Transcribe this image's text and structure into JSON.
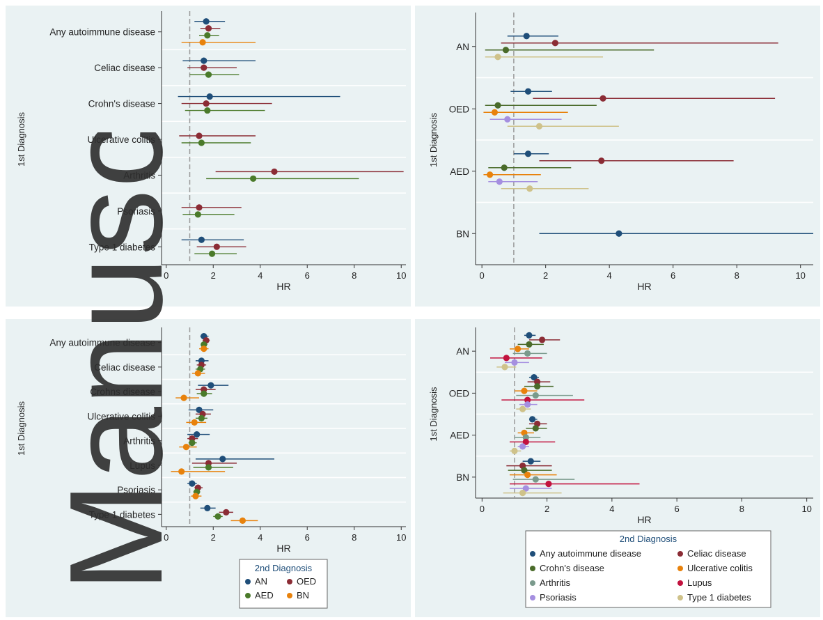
{
  "colors": {
    "AN": "#1f4e79",
    "OED": "#8b2c35",
    "AED": "#4a7a2a",
    "BN": "#e8820c",
    "Any autoimmune disease": "#1f4e79",
    "Celiac disease": "#8b2c35",
    "Crohn's disease": "#4a6b2a",
    "Ulcerative colitis": "#e8820c",
    "Arthritis": "#7a9a8c",
    "Lupus": "#c2123e",
    "Psoriasis": "#a58fe0",
    "Type 1 diabetes": "#cfc28a",
    "panel_bg": "#eaf2f3",
    "ref_line": "#999999"
  },
  "watermark": "Manuscript",
  "legend_bottom_left": {
    "title": "2nd Diagnosis",
    "items": [
      "AN",
      "OED",
      "AED",
      "BN"
    ]
  },
  "legend_bottom_right": {
    "title": "2nd Diagnosis",
    "items": [
      "Any autoimmune disease",
      "Celiac disease",
      "Crohn's disease",
      "Ulcerative colitis",
      "Arthritis",
      "Lupus",
      "Psoriasis",
      "Type 1 diabetes"
    ]
  },
  "chart_data": [
    {
      "type": "scatter",
      "panel": "top-left",
      "xlabel": "HR",
      "ylabel": "1st Diagnosis",
      "xlim": [
        -0.2,
        10.2
      ],
      "xticks": [
        0,
        2,
        4,
        6,
        8,
        10
      ],
      "reference_line": 1,
      "groups": [
        {
          "label": "Any autoimmune disease",
          "points": [
            {
              "series": "AN",
              "hr": 1.7,
              "lo": 1.2,
              "hi": 2.5
            },
            {
              "series": "OED",
              "hr": 1.8,
              "lo": 1.45,
              "hi": 2.3
            },
            {
              "series": "AED",
              "hr": 1.75,
              "lo": 1.4,
              "hi": 2.25
            },
            {
              "series": "BN",
              "hr": 1.55,
              "lo": 0.65,
              "hi": 3.8
            }
          ]
        },
        {
          "label": "Celiac disease",
          "points": [
            {
              "series": "AN",
              "hr": 1.6,
              "lo": 0.7,
              "hi": 3.8
            },
            {
              "series": "OED",
              "hr": 1.6,
              "lo": 0.9,
              "hi": 3.0
            },
            {
              "series": "AED",
              "hr": 1.8,
              "lo": 1.0,
              "hi": 3.1
            }
          ]
        },
        {
          "label": "Crohn's disease",
          "points": [
            {
              "series": "AN",
              "hr": 1.85,
              "lo": 0.5,
              "hi": 7.4
            },
            {
              "series": "OED",
              "hr": 1.7,
              "lo": 0.65,
              "hi": 4.5
            },
            {
              "series": "AED",
              "hr": 1.75,
              "lo": 0.8,
              "hi": 4.2
            }
          ]
        },
        {
          "label": "Ulcerative colitis",
          "points": [
            {
              "series": "OED",
              "hr": 1.4,
              "lo": 0.55,
              "hi": 3.8
            },
            {
              "series": "AED",
              "hr": 1.5,
              "lo": 0.65,
              "hi": 3.6
            }
          ]
        },
        {
          "label": "Arthritis",
          "points": [
            {
              "series": "OED",
              "hr": 4.6,
              "lo": 2.1,
              "hi": 10.1
            },
            {
              "series": "AED",
              "hr": 3.7,
              "lo": 1.7,
              "hi": 8.2
            }
          ]
        },
        {
          "label": "Psoriasis",
          "points": [
            {
              "series": "OED",
              "hr": 1.4,
              "lo": 0.65,
              "hi": 3.2
            },
            {
              "series": "AED",
              "hr": 1.35,
              "lo": 0.7,
              "hi": 2.9
            }
          ]
        },
        {
          "label": "Type 1 diabetes",
          "points": [
            {
              "series": "AN",
              "hr": 1.5,
              "lo": 0.65,
              "hi": 3.3
            },
            {
              "series": "OED",
              "hr": 2.15,
              "lo": 1.3,
              "hi": 3.4
            },
            {
              "series": "AED",
              "hr": 1.95,
              "lo": 1.2,
              "hi": 3.0
            }
          ]
        }
      ]
    },
    {
      "type": "scatter",
      "panel": "top-right",
      "xlabel": "HR",
      "ylabel": "1st Diagnosis",
      "xlim": [
        -0.2,
        10.4
      ],
      "xticks": [
        0,
        2,
        4,
        6,
        8,
        10
      ],
      "reference_line": 1,
      "groups": [
        {
          "label": "AN",
          "points": [
            {
              "series": "Any autoimmune disease",
              "hr": 1.4,
              "lo": 0.8,
              "hi": 2.4
            },
            {
              "series": "Celiac disease",
              "hr": 2.3,
              "lo": 0.6,
              "hi": 9.3
            },
            {
              "series": "Crohn's disease",
              "hr": 0.75,
              "lo": 0.1,
              "hi": 5.4
            },
            {
              "series": "Type 1 diabetes",
              "hr": 0.5,
              "lo": 0.1,
              "hi": 3.8
            }
          ]
        },
        {
          "label": "OED",
          "points": [
            {
              "series": "Any autoimmune disease",
              "hr": 1.45,
              "lo": 0.9,
              "hi": 2.2
            },
            {
              "series": "Celiac disease",
              "hr": 3.8,
              "lo": 1.6,
              "hi": 9.2
            },
            {
              "series": "Crohn's disease",
              "hr": 0.5,
              "lo": 0.1,
              "hi": 3.6
            },
            {
              "series": "Ulcerative colitis",
              "hr": 0.4,
              "lo": 0.05,
              "hi": 2.7
            },
            {
              "series": "Psoriasis",
              "hr": 0.8,
              "lo": 0.25,
              "hi": 2.5
            },
            {
              "series": "Type 1 diabetes",
              "hr": 1.8,
              "lo": 0.8,
              "hi": 4.3
            }
          ]
        },
        {
          "label": "AED",
          "points": [
            {
              "series": "Any autoimmune disease",
              "hr": 1.45,
              "lo": 1.0,
              "hi": 2.1
            },
            {
              "series": "Celiac disease",
              "hr": 3.75,
              "lo": 1.8,
              "hi": 7.9
            },
            {
              "series": "Crohn's disease",
              "hr": 0.7,
              "lo": 0.2,
              "hi": 2.8
            },
            {
              "series": "Ulcerative colitis",
              "hr": 0.25,
              "lo": 0.05,
              "hi": 1.85
            },
            {
              "series": "Psoriasis",
              "hr": 0.55,
              "lo": 0.2,
              "hi": 1.75
            },
            {
              "series": "Type 1 diabetes",
              "hr": 1.5,
              "lo": 0.6,
              "hi": 3.35
            }
          ]
        },
        {
          "label": "BN",
          "points": [
            {
              "series": "Any autoimmune disease",
              "hr": 4.3,
              "lo": 1.8,
              "hi": 10.4
            }
          ]
        }
      ]
    },
    {
      "type": "scatter",
      "panel": "bottom-left",
      "xlabel": "HR",
      "ylabel": "1st Diagnosis",
      "xlim": [
        -0.2,
        10.2
      ],
      "xticks": [
        0,
        2,
        4,
        6,
        8,
        10
      ],
      "reference_line": 1,
      "groups": [
        {
          "label": "Any autoimmune disease",
          "points": [
            {
              "series": "AN",
              "hr": 1.6,
              "lo": 1.45,
              "hi": 1.8
            },
            {
              "series": "OED",
              "hr": 1.7,
              "lo": 1.55,
              "hi": 1.85
            },
            {
              "series": "AED",
              "hr": 1.6,
              "lo": 1.5,
              "hi": 1.75
            },
            {
              "series": "BN",
              "hr": 1.6,
              "lo": 1.4,
              "hi": 1.8
            }
          ]
        },
        {
          "label": "Celiac disease",
          "points": [
            {
              "series": "AN",
              "hr": 1.5,
              "lo": 1.25,
              "hi": 1.8
            },
            {
              "series": "OED",
              "hr": 1.5,
              "lo": 1.3,
              "hi": 1.7
            },
            {
              "series": "AED",
              "hr": 1.45,
              "lo": 1.25,
              "hi": 1.65
            },
            {
              "series": "BN",
              "hr": 1.35,
              "lo": 1.1,
              "hi": 1.65
            }
          ]
        },
        {
          "label": "Crohns disease",
          "points": [
            {
              "series": "AN",
              "hr": 1.9,
              "lo": 1.35,
              "hi": 2.65
            },
            {
              "series": "OED",
              "hr": 1.6,
              "lo": 1.25,
              "hi": 2.1
            },
            {
              "series": "AED",
              "hr": 1.6,
              "lo": 1.3,
              "hi": 1.95
            },
            {
              "series": "BN",
              "hr": 0.75,
              "lo": 0.4,
              "hi": 1.4
            }
          ]
        },
        {
          "label": "Ulcerative colitis",
          "points": [
            {
              "series": "AN",
              "hr": 1.4,
              "lo": 0.95,
              "hi": 2.0
            },
            {
              "series": "OED",
              "hr": 1.55,
              "lo": 1.25,
              "hi": 1.9
            },
            {
              "series": "AED",
              "hr": 1.5,
              "lo": 1.25,
              "hi": 1.75
            },
            {
              "series": "BN",
              "hr": 1.2,
              "lo": 0.85,
              "hi": 1.7
            }
          ]
        },
        {
          "label": "Arthritis",
          "points": [
            {
              "series": "AN",
              "hr": 1.3,
              "lo": 0.9,
              "hi": 1.85
            },
            {
              "series": "OED",
              "hr": 1.1,
              "lo": 0.9,
              "hi": 1.35
            },
            {
              "series": "AED",
              "hr": 1.1,
              "lo": 0.95,
              "hi": 1.3
            },
            {
              "series": "BN",
              "hr": 0.85,
              "lo": 0.55,
              "hi": 1.3
            }
          ]
        },
        {
          "label": "Lupus",
          "points": [
            {
              "series": "AN",
              "hr": 2.4,
              "lo": 1.25,
              "hi": 4.6
            },
            {
              "series": "OED",
              "hr": 1.8,
              "lo": 1.1,
              "hi": 3.0
            },
            {
              "series": "AED",
              "hr": 1.8,
              "lo": 1.15,
              "hi": 2.85
            },
            {
              "series": "BN",
              "hr": 0.65,
              "lo": 0.2,
              "hi": 2.5
            }
          ]
        },
        {
          "label": "Psoriasis",
          "points": [
            {
              "series": "AN",
              "hr": 1.1,
              "lo": 0.9,
              "hi": 1.3
            },
            {
              "series": "OED",
              "hr": 1.35,
              "lo": 1.2,
              "hi": 1.55
            },
            {
              "series": "AED",
              "hr": 1.3,
              "lo": 1.15,
              "hi": 1.45
            },
            {
              "series": "BN",
              "hr": 1.25,
              "lo": 1.05,
              "hi": 1.5
            }
          ]
        },
        {
          "label": "Type 1 diabetes",
          "points": [
            {
              "series": "AN",
              "hr": 1.75,
              "lo": 1.45,
              "hi": 2.1
            },
            {
              "series": "OED",
              "hr": 2.55,
              "lo": 2.25,
              "hi": 2.85
            },
            {
              "series": "AED",
              "hr": 2.2,
              "lo": 2.0,
              "hi": 2.4
            },
            {
              "series": "BN",
              "hr": 3.25,
              "lo": 2.75,
              "hi": 3.9
            }
          ]
        }
      ]
    },
    {
      "type": "scatter",
      "panel": "bottom-right",
      "xlabel": "HR",
      "ylabel": "1st Diagnosis",
      "xlim": [
        -0.2,
        10.2
      ],
      "xticks": [
        0,
        2,
        4,
        6,
        8,
        10
      ],
      "reference_line": 1,
      "groups": [
        {
          "label": "AN",
          "points": [
            {
              "series": "Any autoimmune disease",
              "hr": 1.45,
              "lo": 1.3,
              "hi": 1.65
            },
            {
              "series": "Celiac disease",
              "hr": 1.85,
              "lo": 1.45,
              "hi": 2.4
            },
            {
              "series": "Crohn's disease",
              "hr": 1.45,
              "lo": 1.1,
              "hi": 1.9
            },
            {
              "series": "Ulcerative colitis",
              "hr": 1.1,
              "lo": 0.85,
              "hi": 1.45
            },
            {
              "series": "Arthritis",
              "hr": 1.4,
              "lo": 0.95,
              "hi": 2.0
            },
            {
              "series": "Lupus",
              "hr": 0.75,
              "lo": 0.25,
              "hi": 1.85
            },
            {
              "series": "Psoriasis",
              "hr": 1.0,
              "lo": 0.7,
              "hi": 1.45
            },
            {
              "series": "Type 1 diabetes",
              "hr": 0.7,
              "lo": 0.45,
              "hi": 1.05
            }
          ]
        },
        {
          "label": "OED",
          "points": [
            {
              "series": "Any autoimmune disease",
              "hr": 1.6,
              "lo": 1.45,
              "hi": 1.75
            },
            {
              "series": "Celiac disease",
              "hr": 1.7,
              "lo": 1.4,
              "hi": 2.1
            },
            {
              "series": "Crohn's disease",
              "hr": 1.7,
              "lo": 1.3,
              "hi": 2.2
            },
            {
              "series": "Ulcerative colitis",
              "hr": 1.3,
              "lo": 1.0,
              "hi": 1.7
            },
            {
              "series": "Arthritis",
              "hr": 1.65,
              "lo": 1.05,
              "hi": 2.8
            },
            {
              "series": "Lupus",
              "hr": 1.4,
              "lo": 0.6,
              "hi": 3.15
            },
            {
              "series": "Psoriasis",
              "hr": 1.4,
              "lo": 1.15,
              "hi": 1.7
            },
            {
              "series": "Type 1 diabetes",
              "hr": 1.25,
              "lo": 1.05,
              "hi": 1.5
            }
          ]
        },
        {
          "label": "AED",
          "points": [
            {
              "series": "Any autoimmune disease",
              "hr": 1.55,
              "lo": 1.45,
              "hi": 1.7
            },
            {
              "series": "Celiac disease",
              "hr": 1.7,
              "lo": 1.45,
              "hi": 2.0
            },
            {
              "series": "Crohn's disease",
              "hr": 1.65,
              "lo": 1.35,
              "hi": 2.0
            },
            {
              "series": "Ulcerative colitis",
              "hr": 1.3,
              "lo": 1.1,
              "hi": 1.6
            },
            {
              "series": "Arthritis",
              "hr": 1.35,
              "lo": 1.0,
              "hi": 1.8
            },
            {
              "series": "Lupus",
              "hr": 1.35,
              "lo": 0.85,
              "hi": 2.25
            },
            {
              "series": "Psoriasis",
              "hr": 1.25,
              "lo": 1.1,
              "hi": 1.45
            },
            {
              "series": "Type 1 diabetes",
              "hr": 1.0,
              "lo": 0.85,
              "hi": 1.2
            }
          ]
        },
        {
          "label": "BN",
          "points": [
            {
              "series": "Any autoimmune disease",
              "hr": 1.5,
              "lo": 1.25,
              "hi": 1.8
            },
            {
              "series": "Celiac disease",
              "hr": 1.25,
              "lo": 0.75,
              "hi": 2.15
            },
            {
              "series": "Crohn's disease",
              "hr": 1.3,
              "lo": 0.8,
              "hi": 2.15
            },
            {
              "series": "Ulcerative colitis",
              "hr": 1.4,
              "lo": 0.85,
              "hi": 2.3
            },
            {
              "series": "Arthritis",
              "hr": 1.65,
              "lo": 0.95,
              "hi": 2.85
            },
            {
              "series": "Lupus",
              "hr": 2.05,
              "lo": 0.85,
              "hi": 4.85
            },
            {
              "series": "Psoriasis",
              "hr": 1.35,
              "lo": 0.85,
              "hi": 2.15
            },
            {
              "series": "Type 1 diabetes",
              "hr": 1.25,
              "lo": 0.65,
              "hi": 2.45
            }
          ]
        }
      ]
    }
  ]
}
